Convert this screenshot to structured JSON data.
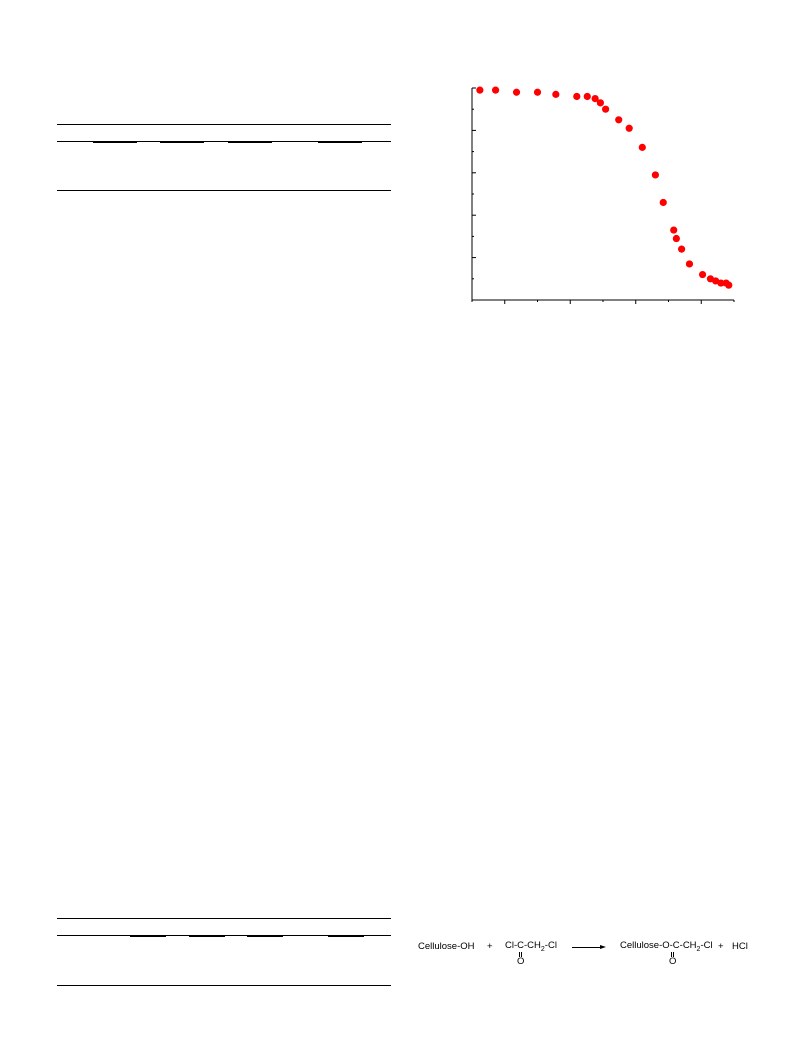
{
  "chart_data": {
    "type": "scatter",
    "title": "",
    "xlabel": "",
    "ylabel": "",
    "xlim": [
      0,
      100
    ],
    "ylim": [
      0,
      100
    ],
    "grid": false,
    "marker_color": "#ff0000",
    "series": [
      {
        "x": [
          3,
          9,
          17,
          25,
          32,
          40,
          44,
          47,
          49,
          51,
          56,
          60,
          65,
          70,
          73,
          77,
          78,
          80,
          83,
          88,
          91,
          93,
          95,
          97,
          98
        ],
        "y": [
          99,
          99,
          98,
          98,
          97,
          96,
          96,
          95,
          93,
          90,
          85,
          81,
          72,
          59,
          46,
          33,
          29,
          24,
          17,
          12,
          10,
          9,
          8,
          8,
          7
        ]
      }
    ]
  },
  "reaction": {
    "reactant1": "Cellulose-OH",
    "plus1": "+",
    "reagent_prefix": "Cl-C-CH",
    "reagent_sub": "2",
    "reagent_suffix": "-Cl",
    "reagent_oxygen": "O",
    "product_prefix": "Cellulose-O-C-CH",
    "product_sub": "2",
    "product_suffix": "-Cl",
    "product_oxygen": "O",
    "plus2": "+",
    "byproduct": "HCl"
  }
}
